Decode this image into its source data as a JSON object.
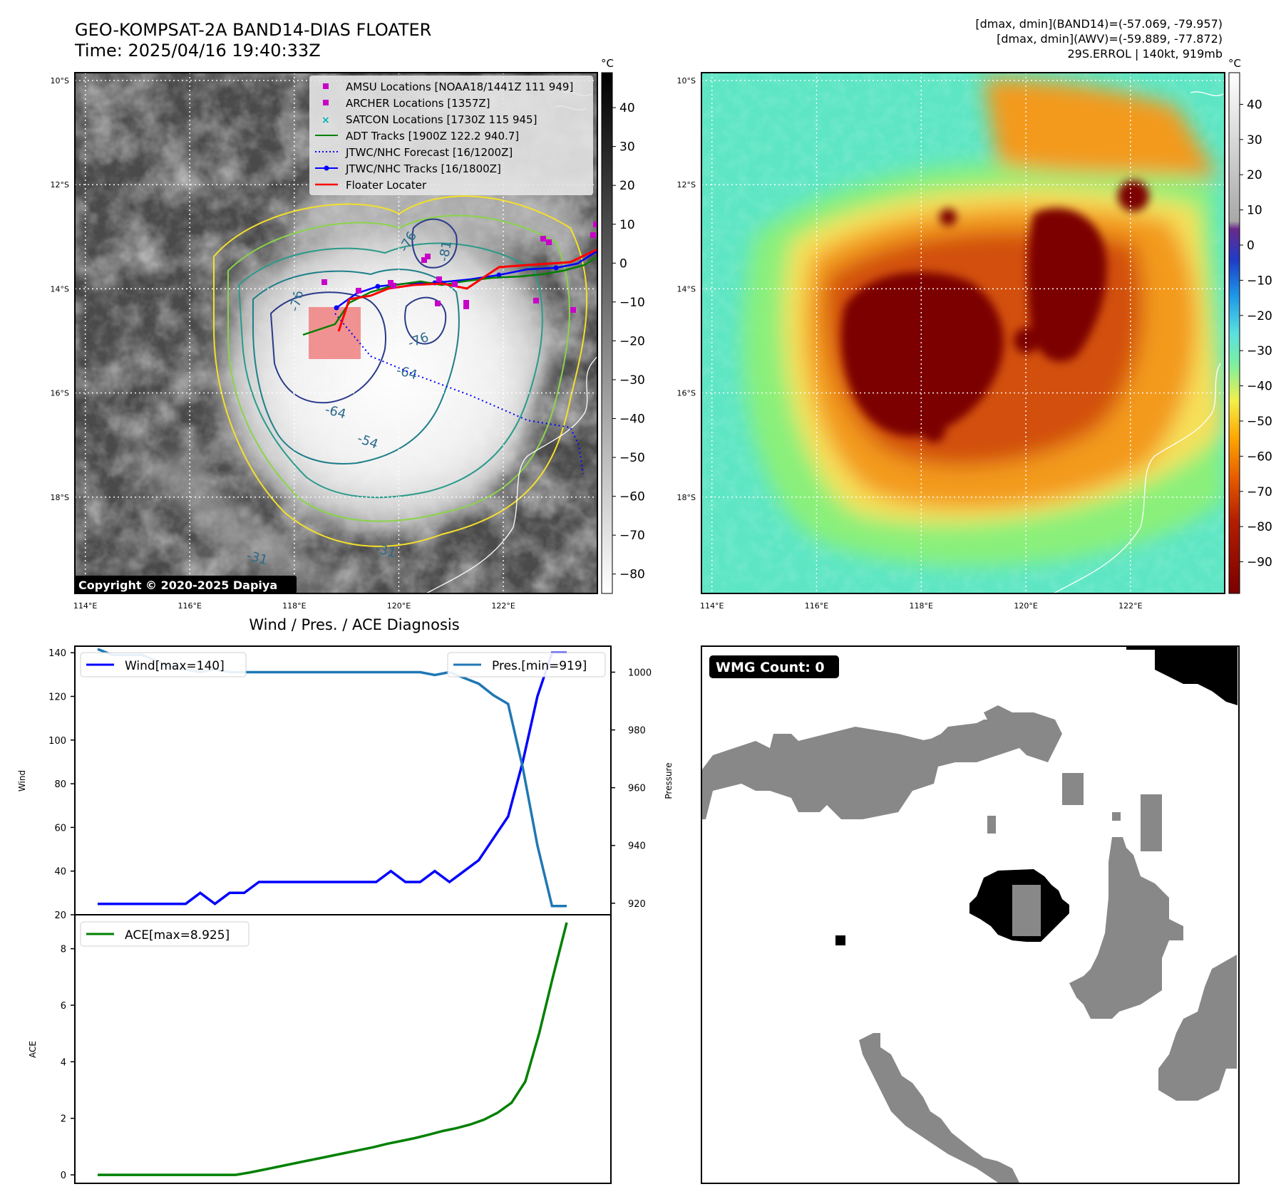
{
  "header": {
    "title_line1": "GEO-KOMPSAT-2A BAND14-DIAS FLOATER",
    "title_line2": "Time: 2025/04/16 19:40:33Z",
    "info_line1": "[dmax, dmin](BAND14)=(-57.069, -79.957)",
    "info_line2": "[dmax, dmin](AWV)=(-59.889, -77.872)",
    "info_line3": "29S.ERROL | 140kt, 919mb"
  },
  "map_axes": {
    "lat_labels": [
      "10°S",
      "12°S",
      "14°S",
      "16°S",
      "18°S"
    ],
    "lon_labels": [
      "114°E",
      "116°E",
      "118°E",
      "120°E",
      "122°E"
    ],
    "lat_values": [
      -10,
      -12,
      -14,
      -16,
      -18
    ],
    "lon_values": [
      114,
      116,
      118,
      120,
      122
    ],
    "lat_range": [
      -9.85,
      -19.85
    ],
    "lon_range": [
      113.8,
      123.8
    ]
  },
  "legend": {
    "amsu": "AMSU Locations [NOAA18/1441Z 111 949]",
    "archer": "ARCHER Locations [1357Z]",
    "satcon": "SATCON Locations [1730Z 115 945]",
    "adt": "ADT Tracks [1900Z 122.2 940.7]",
    "forecast": "JTWC/NHC Forecast [16/1200Z]",
    "tracks": "JTWC/NHC Tracks [16/1800Z]",
    "floater": "Floater Locater"
  },
  "contour_labels": [
    "-76",
    "-76",
    "-76",
    "-64",
    "-64",
    "-54",
    "-31",
    "-31",
    "-81"
  ],
  "copyright": "Copyright © 2020-2025 Dapiya",
  "colorbar_gray": {
    "unit": "°C",
    "ticks": [
      "40",
      "30",
      "20",
      "10",
      "0",
      "−10",
      "−20",
      "−30",
      "−40",
      "−50",
      "−60",
      "−70",
      "−80"
    ],
    "values": [
      40,
      30,
      20,
      10,
      0,
      -10,
      -20,
      -30,
      -40,
      -50,
      -60,
      -70,
      -80
    ],
    "range": [
      49,
      -85
    ]
  },
  "colorbar_color": {
    "unit": "°C",
    "ticks": [
      "40",
      "30",
      "20",
      "10",
      "0",
      "−10",
      "−20",
      "−30",
      "−40",
      "−50",
      "−60",
      "−70",
      "−80",
      "−90"
    ],
    "values": [
      40,
      30,
      20,
      10,
      0,
      -10,
      -20,
      -30,
      -40,
      -50,
      -60,
      -70,
      -80,
      -90
    ],
    "range": [
      49,
      -99
    ]
  },
  "wmg": {
    "label": "WMG Count: 0"
  },
  "chart_data": [
    {
      "type": "line",
      "title": "Wind / Pres. / ACE Diagnosis",
      "ylabel": "Wind",
      "ylabel_right": "Pressure",
      "ylim": [
        20,
        143
      ],
      "ylim_right": [
        916,
        1009
      ],
      "yticks": [
        20,
        40,
        60,
        80,
        100,
        120,
        140
      ],
      "yticks_right": [
        920,
        940,
        960,
        980,
        1000
      ],
      "series": [
        {
          "name": "Wind[max=140]",
          "color": "#0000ff",
          "axis": "left",
          "values": [
            25,
            25,
            25,
            25,
            25,
            25,
            25,
            30,
            25,
            30,
            30,
            35,
            35,
            35,
            35,
            35,
            35,
            35,
            35,
            35,
            40,
            35,
            35,
            40,
            35,
            40,
            45,
            55,
            65,
            90,
            120,
            140,
            140
          ]
        },
        {
          "name": "Pres.[min=919]",
          "color": "#1f77b4",
          "axis": "right",
          "values": [
            1008,
            1006,
            1006,
            1006,
            1004,
            1002,
            1001,
            1000,
            1001,
            1000,
            1000,
            1000,
            1000,
            1000,
            1000,
            1000,
            1000,
            1000,
            1000,
            1000,
            1000,
            1000,
            1000,
            999,
            1000,
            998,
            996,
            992,
            989,
            967,
            940,
            919,
            919
          ]
        }
      ]
    },
    {
      "type": "line",
      "ylabel": "ACE",
      "ylim": [
        -0.3,
        9.2
      ],
      "yticks": [
        0,
        2,
        4,
        6,
        8
      ],
      "series": [
        {
          "name": "ACE[max=8.925]",
          "color": "#008000",
          "values": [
            0,
            0,
            0,
            0,
            0,
            0,
            0,
            0,
            0,
            0,
            0,
            0.08,
            0.18,
            0.28,
            0.38,
            0.48,
            0.58,
            0.68,
            0.78,
            0.88,
            0.98,
            1.1,
            1.2,
            1.3,
            1.42,
            1.55,
            1.65,
            1.78,
            1.95,
            2.2,
            2.55,
            3.3,
            5.0,
            7.0,
            8.925
          ]
        }
      ]
    }
  ]
}
